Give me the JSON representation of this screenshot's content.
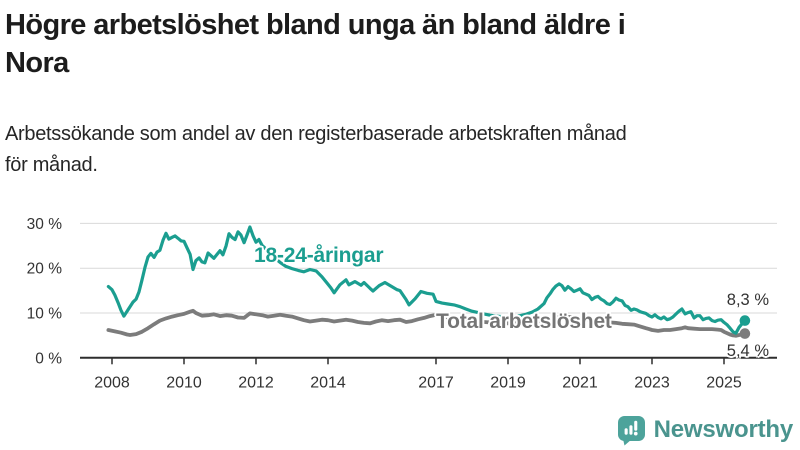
{
  "header": {
    "title_lines": [
      "Högre arbetslöshet bland unga än bland äldre i",
      "Nora"
    ],
    "subtitle_lines": [
      "Arbetssökande som andel av den registerbaserade arbetskraften månad",
      "för månad."
    ]
  },
  "chart_data": {
    "type": "line",
    "title": "Högre arbetslöshet bland unga än bland äldre i Nora",
    "subtitle": "Arbetssökande som andel av den registerbaserade arbetskraften månad för månad.",
    "xlabel": "",
    "ylabel": "%",
    "ylim": [
      0,
      33
    ],
    "xlim": [
      2007.1,
      2026.3
    ],
    "grid": "horizontal",
    "legend_position": "inline-labels",
    "yticks": [
      {
        "value": 30,
        "label": "30 %"
      },
      {
        "value": 20,
        "label": "20 %"
      },
      {
        "value": 10,
        "label": "10 %"
      },
      {
        "value": 0,
        "label": "0 %"
      }
    ],
    "xticks": [
      {
        "value": 2008,
        "label": "2008"
      },
      {
        "value": 2010,
        "label": "2010"
      },
      {
        "value": 2012,
        "label": "2012"
      },
      {
        "value": 2014,
        "label": "2014"
      },
      {
        "value": 2017,
        "label": "2017"
      },
      {
        "value": 2019,
        "label": "2019"
      },
      {
        "value": 2021,
        "label": "2021"
      },
      {
        "value": 2023,
        "label": "2023"
      },
      {
        "value": 2025,
        "label": "2025"
      }
    ],
    "series": [
      {
        "name": "18-24-åringar",
        "color": "#1b9e90",
        "line_width": 3.2,
        "end_label": "8,3 %",
        "end_value": 8.3,
        "points": [
          [
            2007.9,
            15.9
          ],
          [
            2008.0,
            15.2
          ],
          [
            2008.08,
            14.0
          ],
          [
            2008.17,
            12.3
          ],
          [
            2008.25,
            10.6
          ],
          [
            2008.33,
            9.3
          ],
          [
            2008.42,
            10.4
          ],
          [
            2008.5,
            11.4
          ],
          [
            2008.58,
            12.4
          ],
          [
            2008.67,
            13.1
          ],
          [
            2008.75,
            14.7
          ],
          [
            2008.83,
            17.3
          ],
          [
            2008.92,
            20.3
          ],
          [
            2009.0,
            22.5
          ],
          [
            2009.08,
            23.3
          ],
          [
            2009.17,
            22.4
          ],
          [
            2009.25,
            23.6
          ],
          [
            2009.33,
            24.0
          ],
          [
            2009.42,
            26.3
          ],
          [
            2009.5,
            27.8
          ],
          [
            2009.58,
            26.5
          ],
          [
            2009.67,
            26.9
          ],
          [
            2009.75,
            27.2
          ],
          [
            2009.83,
            26.7
          ],
          [
            2009.92,
            26.1
          ],
          [
            2010.0,
            26.0
          ],
          [
            2010.08,
            24.6
          ],
          [
            2010.17,
            23.1
          ],
          [
            2010.25,
            19.7
          ],
          [
            2010.33,
            21.7
          ],
          [
            2010.42,
            22.3
          ],
          [
            2010.5,
            21.4
          ],
          [
            2010.58,
            21.2
          ],
          [
            2010.67,
            23.4
          ],
          [
            2010.75,
            22.8
          ],
          [
            2010.83,
            22.2
          ],
          [
            2010.92,
            23.1
          ],
          [
            2011.0,
            23.9
          ],
          [
            2011.08,
            23.0
          ],
          [
            2011.17,
            25.0
          ],
          [
            2011.25,
            27.7
          ],
          [
            2011.33,
            26.9
          ],
          [
            2011.42,
            26.4
          ],
          [
            2011.5,
            28.1
          ],
          [
            2011.58,
            27.4
          ],
          [
            2011.67,
            25.7
          ],
          [
            2011.75,
            27.4
          ],
          [
            2011.83,
            29.2
          ],
          [
            2011.92,
            27.2
          ],
          [
            2012.0,
            25.8
          ],
          [
            2012.08,
            26.4
          ],
          [
            2012.17,
            25.1
          ],
          [
            2012.33,
            23.9
          ],
          [
            2012.5,
            22.4
          ],
          [
            2012.67,
            21.3
          ],
          [
            2012.83,
            20.4
          ],
          [
            2013.0,
            19.9
          ],
          [
            2013.17,
            19.5
          ],
          [
            2013.33,
            19.2
          ],
          [
            2013.5,
            19.7
          ],
          [
            2013.67,
            19.4
          ],
          [
            2013.83,
            18.1
          ],
          [
            2014.0,
            16.4
          ],
          [
            2014.08,
            15.6
          ],
          [
            2014.17,
            14.5
          ],
          [
            2014.25,
            15.4
          ],
          [
            2014.33,
            16.3
          ],
          [
            2014.5,
            17.4
          ],
          [
            2014.58,
            16.3
          ],
          [
            2014.75,
            17.0
          ],
          [
            2014.92,
            16.2
          ],
          [
            2015.0,
            16.8
          ],
          [
            2015.17,
            15.5
          ],
          [
            2015.25,
            14.9
          ],
          [
            2015.42,
            16.1
          ],
          [
            2015.58,
            16.8
          ],
          [
            2015.75,
            16.0
          ],
          [
            2015.92,
            15.2
          ],
          [
            2016.0,
            15.0
          ],
          [
            2016.17,
            13.0
          ],
          [
            2016.25,
            11.8
          ],
          [
            2016.42,
            13.2
          ],
          [
            2016.58,
            14.8
          ],
          [
            2016.75,
            14.4
          ],
          [
            2016.92,
            14.2
          ],
          [
            2017.0,
            12.6
          ],
          [
            2017.17,
            12.2
          ],
          [
            2017.33,
            12.0
          ],
          [
            2017.5,
            11.8
          ],
          [
            2017.67,
            11.4
          ],
          [
            2017.83,
            10.9
          ],
          [
            2018.0,
            10.4
          ],
          [
            2018.17,
            10.1
          ],
          [
            2018.33,
            9.8
          ],
          [
            2018.5,
            9.5
          ],
          [
            2018.67,
            9.3
          ],
          [
            2018.83,
            9.2
          ],
          [
            2019.0,
            9.0
          ],
          [
            2019.17,
            9.2
          ],
          [
            2019.33,
            9.4
          ],
          [
            2019.5,
            9.7
          ],
          [
            2019.67,
            10.2
          ],
          [
            2019.83,
            10.9
          ],
          [
            2020.0,
            12.1
          ],
          [
            2020.08,
            13.4
          ],
          [
            2020.17,
            14.3
          ],
          [
            2020.25,
            15.3
          ],
          [
            2020.33,
            16.0
          ],
          [
            2020.42,
            16.5
          ],
          [
            2020.5,
            16.1
          ],
          [
            2020.58,
            15.1
          ],
          [
            2020.67,
            15.9
          ],
          [
            2020.75,
            15.4
          ],
          [
            2020.83,
            14.8
          ],
          [
            2020.92,
            15.1
          ],
          [
            2021.0,
            15.4
          ],
          [
            2021.08,
            14.5
          ],
          [
            2021.17,
            14.2
          ],
          [
            2021.25,
            13.9
          ],
          [
            2021.33,
            13.0
          ],
          [
            2021.42,
            13.5
          ],
          [
            2021.5,
            13.7
          ],
          [
            2021.58,
            13.1
          ],
          [
            2021.67,
            12.7
          ],
          [
            2021.75,
            12.1
          ],
          [
            2021.83,
            11.9
          ],
          [
            2021.92,
            12.5
          ],
          [
            2022.0,
            13.3
          ],
          [
            2022.08,
            12.9
          ],
          [
            2022.17,
            12.7
          ],
          [
            2022.25,
            11.7
          ],
          [
            2022.33,
            11.4
          ],
          [
            2022.42,
            10.6
          ],
          [
            2022.5,
            10.9
          ],
          [
            2022.58,
            10.7
          ],
          [
            2022.67,
            10.3
          ],
          [
            2022.75,
            10.1
          ],
          [
            2022.83,
            9.9
          ],
          [
            2022.92,
            9.4
          ],
          [
            2023.0,
            9.1
          ],
          [
            2023.08,
            9.6
          ],
          [
            2023.17,
            9.0
          ],
          [
            2023.25,
            8.7
          ],
          [
            2023.33,
            9.1
          ],
          [
            2023.42,
            8.5
          ],
          [
            2023.5,
            8.7
          ],
          [
            2023.58,
            9.1
          ],
          [
            2023.67,
            9.8
          ],
          [
            2023.75,
            10.4
          ],
          [
            2023.83,
            10.9
          ],
          [
            2023.92,
            9.8
          ],
          [
            2024.0,
            10.1
          ],
          [
            2024.08,
            10.3
          ],
          [
            2024.17,
            8.9
          ],
          [
            2024.25,
            9.4
          ],
          [
            2024.33,
            9.4
          ],
          [
            2024.42,
            8.5
          ],
          [
            2024.5,
            8.8
          ],
          [
            2024.58,
            8.9
          ],
          [
            2024.67,
            8.3
          ],
          [
            2024.75,
            8.1
          ],
          [
            2024.83,
            8.4
          ],
          [
            2024.92,
            8.5
          ],
          [
            2025.0,
            7.9
          ],
          [
            2025.08,
            7.4
          ],
          [
            2025.17,
            6.6
          ],
          [
            2025.25,
            5.8
          ],
          [
            2025.33,
            5.5
          ],
          [
            2025.42,
            6.8
          ],
          [
            2025.5,
            7.6
          ],
          [
            2025.58,
            8.3
          ]
        ]
      },
      {
        "name": "Total arbetslöshet",
        "color": "#7c7c7c",
        "line_width": 3.8,
        "end_label": "5,4 %",
        "end_value": 5.4,
        "points": [
          [
            2007.9,
            6.2
          ],
          [
            2008.08,
            5.9
          ],
          [
            2008.25,
            5.6
          ],
          [
            2008.42,
            5.2
          ],
          [
            2008.5,
            5.1
          ],
          [
            2008.67,
            5.3
          ],
          [
            2008.83,
            5.8
          ],
          [
            2009.0,
            6.6
          ],
          [
            2009.17,
            7.5
          ],
          [
            2009.33,
            8.3
          ],
          [
            2009.5,
            8.8
          ],
          [
            2009.67,
            9.2
          ],
          [
            2009.83,
            9.5
          ],
          [
            2010.0,
            9.8
          ],
          [
            2010.17,
            10.3
          ],
          [
            2010.25,
            10.5
          ],
          [
            2010.33,
            10.0
          ],
          [
            2010.5,
            9.4
          ],
          [
            2010.67,
            9.5
          ],
          [
            2010.83,
            9.7
          ],
          [
            2011.0,
            9.3
          ],
          [
            2011.17,
            9.5
          ],
          [
            2011.33,
            9.4
          ],
          [
            2011.5,
            9.0
          ],
          [
            2011.67,
            8.9
          ],
          [
            2011.83,
            9.9
          ],
          [
            2011.92,
            9.8
          ],
          [
            2012.0,
            9.7
          ],
          [
            2012.17,
            9.5
          ],
          [
            2012.33,
            9.2
          ],
          [
            2012.5,
            9.4
          ],
          [
            2012.67,
            9.6
          ],
          [
            2012.83,
            9.4
          ],
          [
            2013.0,
            9.2
          ],
          [
            2013.17,
            8.8
          ],
          [
            2013.33,
            8.4
          ],
          [
            2013.5,
            8.1
          ],
          [
            2013.67,
            8.3
          ],
          [
            2013.83,
            8.5
          ],
          [
            2014.0,
            8.4
          ],
          [
            2014.17,
            8.1
          ],
          [
            2014.33,
            8.3
          ],
          [
            2014.5,
            8.5
          ],
          [
            2014.67,
            8.3
          ],
          [
            2014.83,
            8.0
          ],
          [
            2015.0,
            7.8
          ],
          [
            2015.17,
            7.7
          ],
          [
            2015.33,
            8.1
          ],
          [
            2015.5,
            8.4
          ],
          [
            2015.67,
            8.2
          ],
          [
            2015.83,
            8.4
          ],
          [
            2016.0,
            8.5
          ],
          [
            2016.17,
            8.0
          ],
          [
            2016.33,
            8.2
          ],
          [
            2016.5,
            8.6
          ],
          [
            2016.67,
            8.9
          ],
          [
            2016.83,
            9.3
          ],
          [
            2017.0,
            9.6
          ],
          [
            2017.17,
            9.3
          ],
          [
            2017.33,
            9.0
          ],
          [
            2017.5,
            8.8
          ],
          [
            2017.67,
            8.6
          ],
          [
            2017.83,
            8.4
          ],
          [
            2018.0,
            8.2
          ],
          [
            2018.33,
            8.0
          ],
          [
            2018.67,
            7.8
          ],
          [
            2019.0,
            7.7
          ],
          [
            2019.33,
            7.8
          ],
          [
            2019.67,
            8.0
          ],
          [
            2020.0,
            8.3
          ],
          [
            2020.25,
            8.8
          ],
          [
            2020.5,
            9.2
          ],
          [
            2020.75,
            9.1
          ],
          [
            2021.0,
            8.8
          ],
          [
            2021.33,
            8.4
          ],
          [
            2021.67,
            8.0
          ],
          [
            2022.0,
            7.8
          ],
          [
            2022.17,
            7.6
          ],
          [
            2022.33,
            7.5
          ],
          [
            2022.5,
            7.4
          ],
          [
            2022.67,
            7.0
          ],
          [
            2022.83,
            6.6
          ],
          [
            2022.92,
            6.4
          ],
          [
            2023.0,
            6.2
          ],
          [
            2023.17,
            6.0
          ],
          [
            2023.33,
            6.2
          ],
          [
            2023.5,
            6.2
          ],
          [
            2023.67,
            6.4
          ],
          [
            2023.83,
            6.6
          ],
          [
            2023.92,
            6.8
          ],
          [
            2024.0,
            6.6
          ],
          [
            2024.17,
            6.5
          ],
          [
            2024.33,
            6.4
          ],
          [
            2024.5,
            6.4
          ],
          [
            2024.67,
            6.4
          ],
          [
            2024.83,
            6.3
          ],
          [
            2024.92,
            6.2
          ],
          [
            2025.0,
            5.8
          ],
          [
            2025.17,
            5.2
          ],
          [
            2025.25,
            5.0
          ],
          [
            2025.33,
            4.9
          ],
          [
            2025.42,
            5.1
          ],
          [
            2025.5,
            5.2
          ],
          [
            2025.58,
            5.4
          ]
        ]
      }
    ],
    "colors": {
      "grid": "#d9d9d9",
      "axis": "#2e2e2e",
      "tick_text": "#333333",
      "end_label_text": "#333333",
      "total_label": "#757575"
    }
  },
  "logo": {
    "text": "Newsworthy",
    "icon": "newsworthy-speech-bubble-chart-icon",
    "icon_color": "#4da39b",
    "text_color": "#4a948e"
  }
}
